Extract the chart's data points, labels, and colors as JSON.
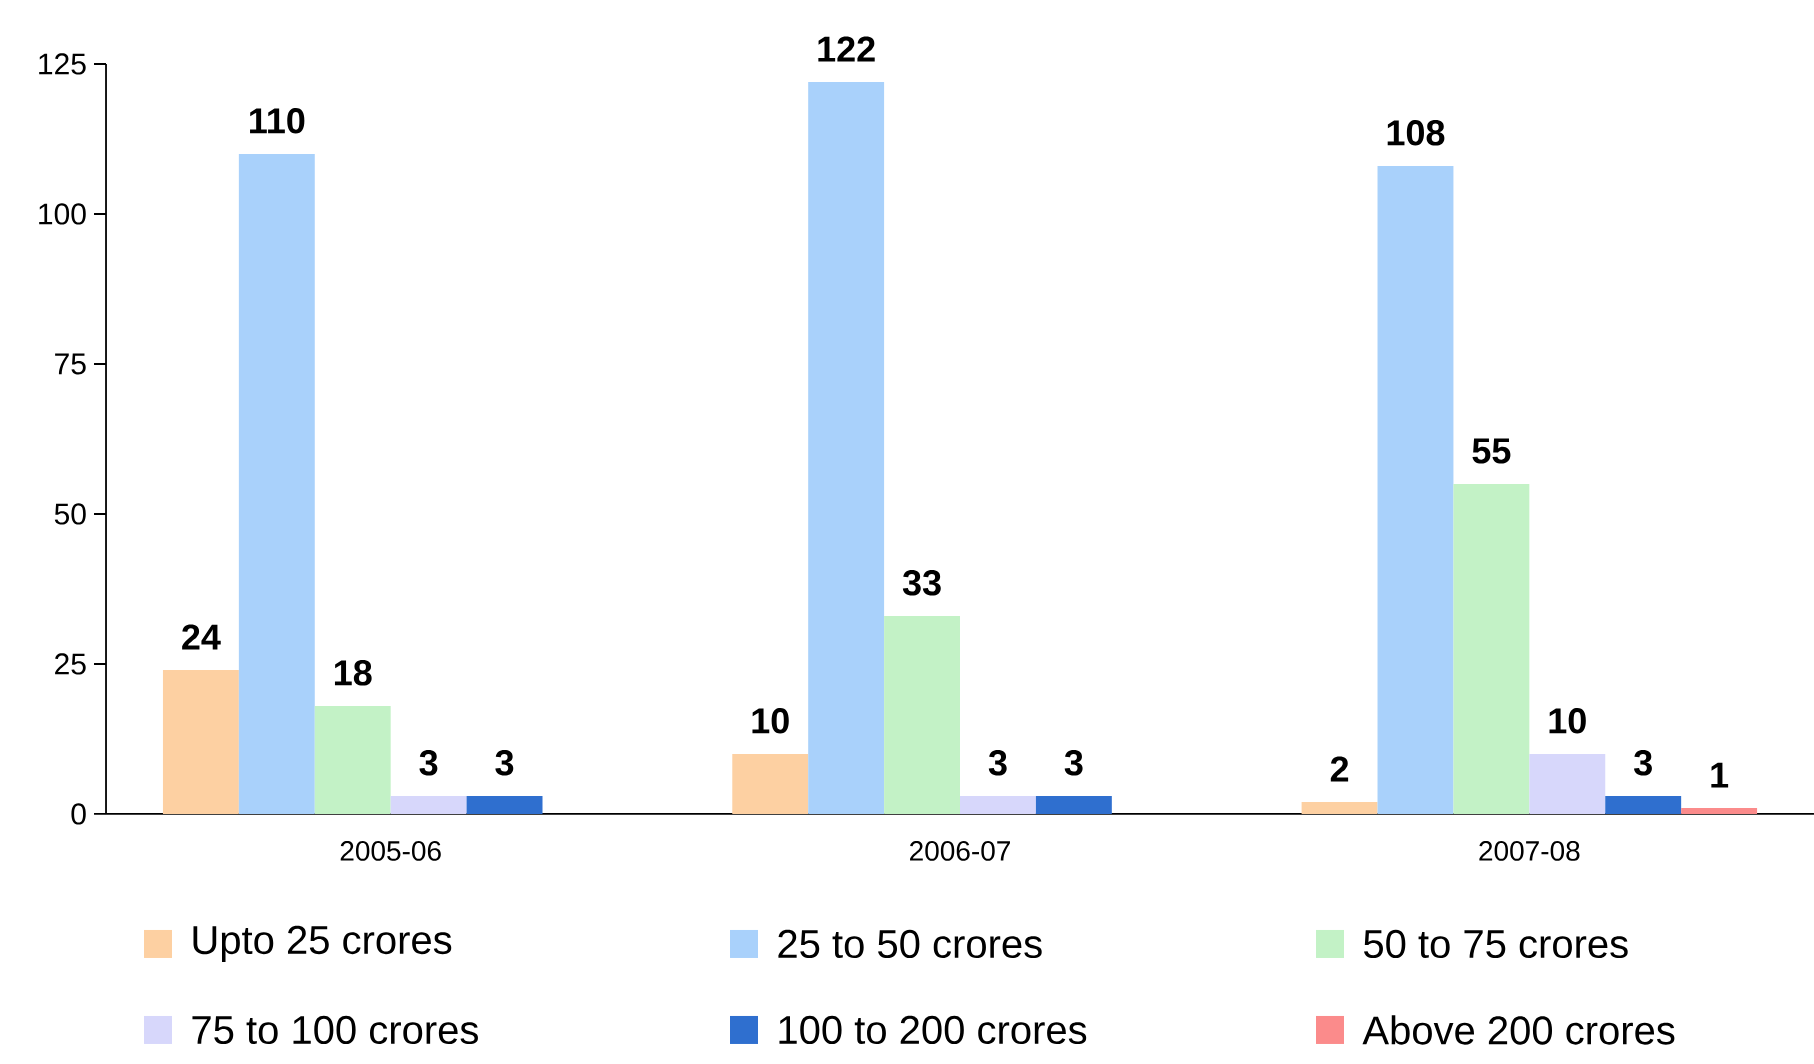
{
  "chart_data": {
    "type": "bar",
    "categories": [
      "2005-06",
      "2006-07",
      "2007-08"
    ],
    "series": [
      {
        "name": "Upto 25 crores",
        "color": "#fdd0a2",
        "values": [
          24,
          10,
          2
        ]
      },
      {
        "name": "25 to 50 crores",
        "color": "#a9d1fb",
        "values": [
          110,
          122,
          108
        ]
      },
      {
        "name": "50 to 75 crores",
        "color": "#c3f2c6",
        "values": [
          18,
          33,
          55
        ]
      },
      {
        "name": "75 to 100 crores",
        "color": "#d7d7fb",
        "values": [
          3,
          3,
          10
        ]
      },
      {
        "name": "100 to 200 crores",
        "color": "#2f6fcf",
        "values": [
          3,
          3,
          3
        ]
      },
      {
        "name": "Above 200 crores",
        "color": "#fb8b8b",
        "values": [
          null,
          null,
          1
        ]
      }
    ],
    "ylim": [
      0,
      125
    ],
    "yticks": [
      0,
      25,
      50,
      75,
      100,
      125
    ],
    "data_labels": true,
    "legend": "bottom"
  }
}
